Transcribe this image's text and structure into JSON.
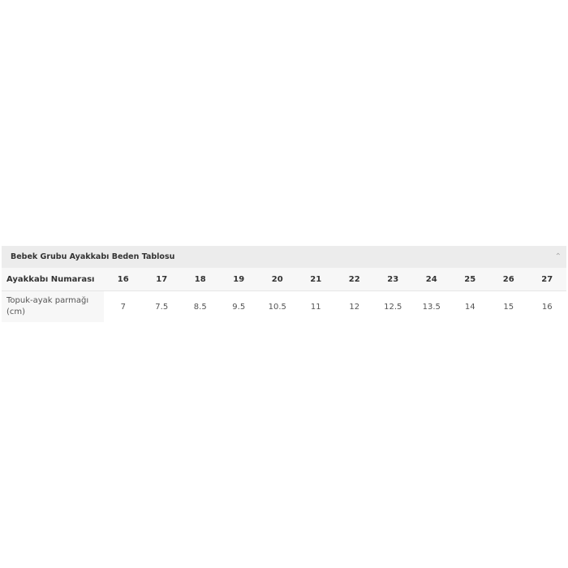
{
  "title": "Bebek Grubu Ayakkabı Beden Tablosu",
  "collapse_icon": "chevron-up-icon",
  "table": {
    "row_headers": [
      "Ayakkabı Numarası",
      "Topuk-ayak parmağı (cm)"
    ],
    "sizes": [
      "16",
      "17",
      "18",
      "19",
      "20",
      "21",
      "22",
      "23",
      "24",
      "25",
      "26",
      "27"
    ],
    "lengths_cm": [
      "7",
      "7.5",
      "8.5",
      "9.5",
      "10.5",
      "11",
      "12",
      "12.5",
      "13.5",
      "14",
      "15",
      "16"
    ]
  }
}
